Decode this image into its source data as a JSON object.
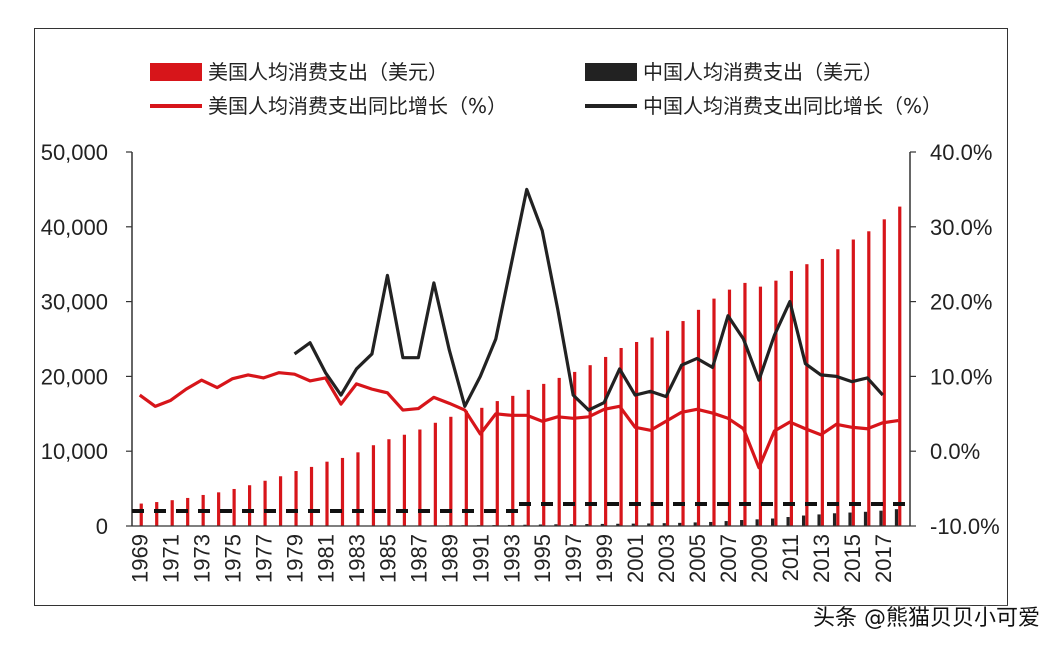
{
  "chart_data": {
    "type": "bar",
    "title": "",
    "xlabel": "",
    "ylabel": "",
    "ylim_left": [
      0,
      50000
    ],
    "ylim_right": [
      -0.1,
      0.4
    ],
    "y_left_ticks": [
      "0",
      "10,000",
      "20,000",
      "30,000",
      "40,000",
      "50,000"
    ],
    "y_right_ticks": [
      "-10.0%",
      "0.0%",
      "10.0%",
      "20.0%",
      "30.0%",
      "40.0%"
    ],
    "x_tick_labels": [
      "1969",
      "1971",
      "1973",
      "1975",
      "1977",
      "1979",
      "1981",
      "1983",
      "1985",
      "1987",
      "1989",
      "1991",
      "1993",
      "1995",
      "1997",
      "1999",
      "2001",
      "2003",
      "2005",
      "2007",
      "2009",
      "2011",
      "2013",
      "2015",
      "2017"
    ],
    "grid": false,
    "legend_position": "top",
    "years": [
      1969,
      1970,
      1971,
      1972,
      1973,
      1974,
      1975,
      1976,
      1977,
      1978,
      1979,
      1980,
      1981,
      1982,
      1983,
      1984,
      1985,
      1986,
      1987,
      1988,
      1989,
      1990,
      1991,
      1992,
      1993,
      1994,
      1995,
      1996,
      1997,
      1998,
      1999,
      2000,
      2001,
      2002,
      2003,
      2004,
      2005,
      2006,
      2007,
      2008,
      2009,
      2010,
      2011,
      2012,
      2013,
      2014,
      2015,
      2016,
      2017,
      2018
    ],
    "series": [
      {
        "name": "美国人均消费支出（美元）",
        "kind": "bar",
        "axis": "left",
        "color": "#d7151a",
        "values": [
          3000,
          3200,
          3450,
          3750,
          4150,
          4500,
          4950,
          5450,
          6050,
          6650,
          7350,
          7900,
          8600,
          9100,
          9850,
          10800,
          11600,
          12200,
          12900,
          13800,
          14600,
          15400,
          15800,
          16700,
          17400,
          18200,
          19000,
          19800,
          20600,
          21500,
          22600,
          23800,
          24600,
          25200,
          26100,
          27400,
          28900,
          30400,
          31600,
          32500,
          32000,
          32800,
          34100,
          35000,
          35700,
          37000,
          38300,
          39400,
          41000,
          42700
        ]
      },
      {
        "name": "中国人均消费支出（美元）",
        "kind": "bar",
        "axis": "left",
        "color": "#222222",
        "values": [
          null,
          null,
          null,
          null,
          null,
          null,
          null,
          null,
          null,
          null,
          30,
          40,
          40,
          45,
          50,
          55,
          60,
          65,
          70,
          80,
          90,
          100,
          110,
          120,
          140,
          170,
          200,
          230,
          250,
          260,
          280,
          300,
          320,
          340,
          380,
          420,
          480,
          540,
          660,
          800,
          890,
          1000,
          1200,
          1400,
          1550,
          1700,
          1800,
          1900,
          2050,
          2250
        ]
      },
      {
        "name": "美国人均消费支出同比增长（%）",
        "kind": "line",
        "axis": "right",
        "color": "#d7151a",
        "values": [
          0.075,
          0.06,
          0.068,
          0.083,
          0.095,
          0.085,
          0.097,
          0.102,
          0.098,
          0.105,
          0.103,
          0.094,
          0.098,
          0.063,
          0.09,
          0.083,
          0.078,
          0.055,
          0.057,
          0.072,
          0.064,
          0.055,
          0.023,
          0.05,
          0.048,
          0.048,
          0.04,
          0.046,
          0.044,
          0.046,
          0.056,
          0.06,
          0.032,
          0.028,
          0.04,
          0.052,
          0.056,
          0.051,
          0.044,
          0.03,
          -0.022,
          0.027,
          0.039,
          0.03,
          0.022,
          0.036,
          0.032,
          0.03,
          0.038,
          0.041
        ]
      },
      {
        "name": "中国人均消费支出同比增长（%）",
        "kind": "line",
        "axis": "right",
        "color": "#222222",
        "values": [
          null,
          null,
          null,
          null,
          null,
          null,
          null,
          null,
          null,
          null,
          0.13,
          0.145,
          0.105,
          0.075,
          0.11,
          0.13,
          0.235,
          0.125,
          0.125,
          0.225,
          0.135,
          0.06,
          0.1,
          0.15,
          0.25,
          0.35,
          0.295,
          0.19,
          0.075,
          0.055,
          0.065,
          0.11,
          0.075,
          0.08,
          0.073,
          0.115,
          0.124,
          0.112,
          0.181,
          0.15,
          0.095,
          0.155,
          0.2,
          0.117,
          0.102,
          0.1,
          0.093,
          0.098,
          0.075,
          null
        ]
      }
    ]
  },
  "legend": [
    {
      "label": "美国人均消费支出（美元）",
      "color": "#d7151a",
      "kind": "bar"
    },
    {
      "label": "中国人均消费支出（美元）",
      "color": "#222222",
      "kind": "bar"
    },
    {
      "label": "美国人均消费支出同比增长（%）",
      "color": "#d7151a",
      "kind": "line"
    },
    {
      "label": "中国人均消费支出同比增长（%）",
      "color": "#222222",
      "kind": "line"
    }
  ],
  "watermark": "头条 @熊猫贝贝小可爱"
}
